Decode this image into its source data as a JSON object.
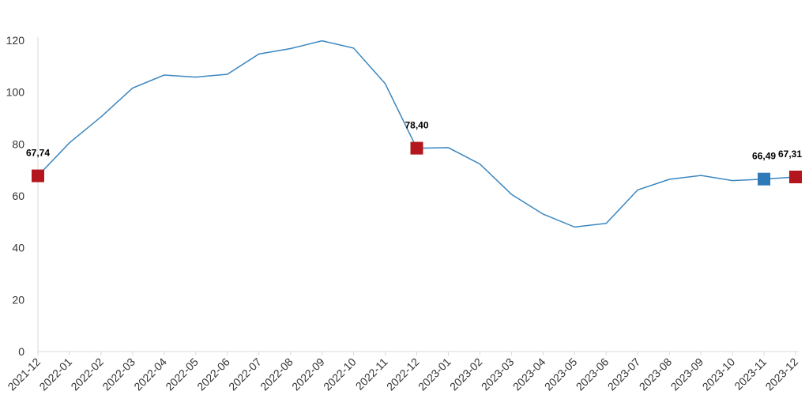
{
  "chart_data": {
    "type": "line",
    "x": [
      "2021-12",
      "2022-01",
      "2022-02",
      "2022-03",
      "2022-04",
      "2022-05",
      "2022-06",
      "2022-07",
      "2022-08",
      "2022-09",
      "2022-10",
      "2022-11",
      "2022-12",
      "2023-01",
      "2023-02",
      "2023-03",
      "2023-04",
      "2023-05",
      "2023-06",
      "2023-07",
      "2023-08",
      "2023-09",
      "2023-10",
      "2023-11",
      "2023-12"
    ],
    "series": [
      {
        "values": [
          67.74,
          80.5,
          90.5,
          101.6,
          106.6,
          105.8,
          106.9,
          114.7,
          116.8,
          119.8,
          117.0,
          103.3,
          78.4,
          78.6,
          72.3,
          60.6,
          53.0,
          48.0,
          49.4,
          62.3,
          66.4,
          67.9,
          65.9,
          66.49,
          67.31
        ],
        "color": "#3a86c0"
      }
    ],
    "highlights": [
      {
        "x": "2021-12",
        "value": 67.74,
        "label": "67,74",
        "color": "#b3171d"
      },
      {
        "x": "2022-12",
        "value": 78.4,
        "label": "78,40",
        "color": "#b3171d"
      },
      {
        "x": "2023-11",
        "value": 66.49,
        "label": "66,49",
        "color": "#2e7ab8"
      },
      {
        "x": "2023-12",
        "value": 67.31,
        "label": "67,31",
        "color": "#b3171d"
      }
    ],
    "yticks": [
      "0",
      "20",
      "40",
      "60",
      "80",
      "100",
      "120"
    ],
    "ylim": [
      0,
      120
    ],
    "grid": false,
    "axis_color": "#d9d9d9"
  }
}
